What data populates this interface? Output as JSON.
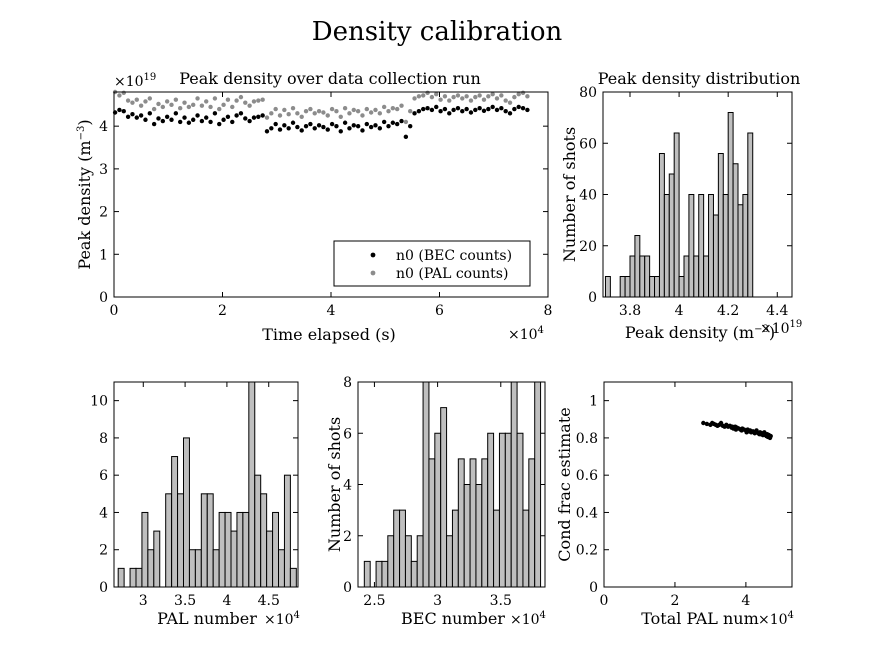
{
  "figure": {
    "title": "Density calibration"
  },
  "chart_data": [
    {
      "type": "scatter",
      "title": "Peak density over data collection run",
      "xlabel": "Time elapsed (s)",
      "x_multiplier": "×10",
      "x_exponent": "4",
      "ylabel": "Peak density (m",
      "ylabel_sup": "−3",
      "ylabel_end": ")",
      "y_multiplier": "×10",
      "y_exponent": "19",
      "xlim": [
        0,
        8
      ],
      "ylim": [
        0,
        4.8
      ],
      "xticks": [
        0,
        2,
        4,
        6,
        8
      ],
      "yticks": [
        0,
        1,
        2,
        3,
        4
      ],
      "colors": {
        "bec": "#000000",
        "pal": "#8c8c8c"
      },
      "legend_position": "bottom-right",
      "series": [
        {
          "name": "n0 (BEC counts)",
          "x": [
            0.02,
            0.1,
            0.18,
            0.26,
            0.34,
            0.42,
            0.5,
            0.58,
            0.66,
            0.74,
            0.82,
            0.9,
            0.98,
            1.06,
            1.14,
            1.22,
            1.3,
            1.38,
            1.46,
            1.54,
            1.62,
            1.7,
            1.78,
            1.86,
            1.94,
            2.02,
            2.1,
            2.18,
            2.26,
            2.34,
            2.42,
            2.5,
            2.58,
            2.66,
            2.74,
            2.82,
            2.9,
            2.98,
            3.06,
            3.14,
            3.22,
            3.3,
            3.38,
            3.46,
            3.54,
            3.62,
            3.7,
            3.78,
            3.86,
            3.94,
            4.02,
            4.1,
            4.18,
            4.26,
            4.34,
            4.42,
            4.5,
            4.58,
            4.66,
            4.74,
            4.82,
            4.9,
            4.98,
            5.06,
            5.14,
            5.22,
            5.3,
            5.38,
            5.46,
            5.54,
            5.62,
            5.7,
            5.78,
            5.86,
            5.94,
            6.02,
            6.1,
            6.18,
            6.26,
            6.34,
            6.42,
            6.5,
            6.58,
            6.66,
            6.74,
            6.82,
            6.9,
            6.98,
            7.06,
            7.14,
            7.22,
            7.3,
            7.38,
            7.46,
            7.54,
            7.62
          ],
          "y": [
            4.32,
            4.38,
            4.35,
            4.22,
            4.28,
            4.2,
            4.25,
            4.15,
            4.3,
            4.05,
            4.18,
            4.12,
            4.22,
            4.15,
            4.3,
            4.1,
            4.2,
            4.08,
            4.15,
            4.25,
            4.12,
            4.2,
            4.1,
            4.3,
            4.05,
            4.15,
            4.22,
            4.1,
            4.25,
            4.3,
            4.18,
            4.12,
            4.2,
            4.22,
            4.25,
            3.88,
            3.95,
            4.05,
            3.92,
            4.02,
            3.95,
            4.08,
            3.98,
            3.9,
            4.0,
            4.05,
            3.95,
            4.02,
            3.98,
            3.92,
            4.05,
            4.0,
            3.88,
            4.08,
            3.95,
            4.02,
            4.0,
            3.9,
            4.05,
            3.98,
            4.02,
            3.95,
            4.1,
            4.0,
            4.08,
            4.05,
            4.12,
            3.75,
            4.0,
            4.3,
            4.35,
            4.4,
            4.42,
            4.38,
            4.45,
            4.35,
            4.4,
            4.3,
            4.38,
            4.42,
            4.35,
            4.4,
            4.32,
            4.38,
            4.42,
            4.36,
            4.4,
            4.45,
            4.38,
            4.42,
            4.35,
            4.3,
            4.4,
            4.45,
            4.42,
            4.38
          ]
        },
        {
          "name": "n0 (PAL counts)",
          "x": [
            0.02,
            0.1,
            0.18,
            0.26,
            0.34,
            0.42,
            0.5,
            0.58,
            0.66,
            0.74,
            0.82,
            0.9,
            0.98,
            1.06,
            1.14,
            1.22,
            1.3,
            1.38,
            1.46,
            1.54,
            1.62,
            1.7,
            1.78,
            1.86,
            1.94,
            2.02,
            2.1,
            2.18,
            2.26,
            2.34,
            2.42,
            2.5,
            2.58,
            2.66,
            2.74,
            2.82,
            2.9,
            2.98,
            3.06,
            3.14,
            3.22,
            3.3,
            3.38,
            3.46,
            3.54,
            3.62,
            3.7,
            3.78,
            3.86,
            3.94,
            4.02,
            4.1,
            4.18,
            4.26,
            4.34,
            4.42,
            4.5,
            4.58,
            4.66,
            4.74,
            4.82,
            4.9,
            4.98,
            5.06,
            5.14,
            5.22,
            5.3,
            5.38,
            5.46,
            5.54,
            5.62,
            5.7,
            5.78,
            5.86,
            5.94,
            6.02,
            6.1,
            6.18,
            6.26,
            6.34,
            6.42,
            6.5,
            6.58,
            6.66,
            6.74,
            6.82,
            6.9,
            6.98,
            7.06,
            7.14,
            7.22,
            7.3,
            7.38,
            7.46,
            7.54,
            7.62
          ],
          "y": [
            4.8,
            4.72,
            4.78,
            4.6,
            4.55,
            4.62,
            4.48,
            4.58,
            4.65,
            4.4,
            4.52,
            4.45,
            4.58,
            4.5,
            4.62,
            4.42,
            4.55,
            4.45,
            4.5,
            4.65,
            4.48,
            4.58,
            4.45,
            4.65,
            4.4,
            4.5,
            4.62,
            4.45,
            4.6,
            4.68,
            4.55,
            4.48,
            4.58,
            4.6,
            4.62,
            4.2,
            4.3,
            4.4,
            4.25,
            4.38,
            4.28,
            4.42,
            4.3,
            4.22,
            4.35,
            4.4,
            4.3,
            4.35,
            4.32,
            4.25,
            4.4,
            4.35,
            4.22,
            4.42,
            4.3,
            4.38,
            4.35,
            4.25,
            4.4,
            4.32,
            4.38,
            4.3,
            4.45,
            4.35,
            4.42,
            4.4,
            4.48,
            4.1,
            4.35,
            4.65,
            4.7,
            4.72,
            4.78,
            4.68,
            4.75,
            4.62,
            4.7,
            4.6,
            4.68,
            4.72,
            4.65,
            4.7,
            4.6,
            4.68,
            4.72,
            4.62,
            4.7,
            4.75,
            4.65,
            4.72,
            4.6,
            4.55,
            4.68,
            4.75,
            4.78,
            4.7
          ]
        }
      ]
    },
    {
      "type": "bar",
      "title": "Peak density distribution",
      "xlabel": "Peak density (m",
      "xlabel_sup": "−3",
      "xlabel_end": ")",
      "x_multiplier": "×10",
      "x_exponent": "19",
      "ylabel": "Number of shots",
      "xlim": [
        3.69,
        4.46
      ],
      "ylim": [
        0,
        80
      ],
      "xticks": [
        3.8,
        4,
        4.2,
        4.4
      ],
      "yticks": [
        0,
        20,
        40,
        60,
        80
      ],
      "bin_start": 3.7,
      "bin_width": 0.02,
      "values": [
        8,
        0,
        0,
        8,
        8,
        16,
        24,
        16,
        16,
        8,
        8,
        56,
        40,
        48,
        64,
        8,
        16,
        40,
        16,
        40,
        16,
        40,
        32,
        56,
        40,
        72,
        52,
        36,
        40,
        64
      ]
    },
    {
      "type": "bar",
      "xlabel": "PAL number",
      "x_multiplier": "×10",
      "x_exponent": "4",
      "ylabel": "",
      "xlim": [
        2.65,
        4.85
      ],
      "ylim": [
        0,
        11
      ],
      "xticks": [
        3,
        3.5,
        4,
        4.5
      ],
      "yticks": [
        0,
        2,
        4,
        6,
        8,
        10
      ],
      "bin_start": 2.7,
      "bin_width": 0.071,
      "values": [
        1,
        0,
        1,
        1,
        4,
        2,
        3,
        0,
        5,
        7,
        5,
        8,
        2,
        2,
        5,
        5,
        2,
        4,
        4,
        3,
        4,
        4,
        11,
        6,
        5,
        3,
        4,
        2,
        6,
        1
      ]
    },
    {
      "type": "bar",
      "xlabel": "BEC number",
      "x_multiplier": "×10",
      "x_exponent": "4",
      "ylabel": "Number of shots",
      "xlim": [
        2.37,
        3.85
      ],
      "ylim": [
        0,
        8
      ],
      "xticks": [
        2.5,
        3,
        3.5
      ],
      "yticks": [
        0,
        2,
        4,
        6,
        8
      ],
      "bin_start": 2.42,
      "bin_width": 0.0465,
      "values": [
        1,
        0,
        1,
        1,
        2,
        3,
        3,
        2,
        1,
        2,
        8,
        5,
        6,
        7,
        2,
        3,
        5,
        4,
        5,
        4,
        5,
        6,
        3,
        6,
        6,
        8,
        6,
        3,
        5,
        8
      ]
    },
    {
      "type": "scatter",
      "xlabel": "Total PAL num",
      "x_multiplier": "×10",
      "x_exponent": "4",
      "ylabel": "Cond frac estimate",
      "xlim": [
        0,
        5.3
      ],
      "ylim": [
        0,
        1.1
      ],
      "xticks": [
        0,
        2,
        4
      ],
      "yticks": [
        0,
        0.2,
        0.4,
        0.6,
        0.8,
        1
      ],
      "series": [
        {
          "name": "",
          "x": [
            2.8,
            2.9,
            3.0,
            3.05,
            3.1,
            3.15,
            3.2,
            3.25,
            3.3,
            3.35,
            3.4,
            3.45,
            3.5,
            3.55,
            3.6,
            3.62,
            3.65,
            3.7,
            3.72,
            3.75,
            3.8,
            3.85,
            3.88,
            3.9,
            3.95,
            4.0,
            4.02,
            4.05,
            4.1,
            4.12,
            4.15,
            4.2,
            4.25,
            4.28,
            4.3,
            4.35,
            4.38,
            4.4,
            4.42,
            4.45,
            4.48,
            4.5,
            4.52,
            4.55,
            4.58,
            4.6,
            4.62,
            4.65,
            4.68,
            4.7
          ],
          "y": [
            0.88,
            0.875,
            0.87,
            0.88,
            0.875,
            0.87,
            0.865,
            0.87,
            0.88,
            0.865,
            0.86,
            0.87,
            0.86,
            0.865,
            0.855,
            0.86,
            0.85,
            0.86,
            0.845,
            0.855,
            0.85,
            0.845,
            0.84,
            0.85,
            0.845,
            0.84,
            0.83,
            0.845,
            0.835,
            0.84,
            0.83,
            0.835,
            0.825,
            0.83,
            0.84,
            0.825,
            0.82,
            0.83,
            0.82,
            0.825,
            0.815,
            0.82,
            0.83,
            0.815,
            0.81,
            0.82,
            0.805,
            0.815,
            0.8,
            0.81
          ]
        }
      ]
    }
  ]
}
